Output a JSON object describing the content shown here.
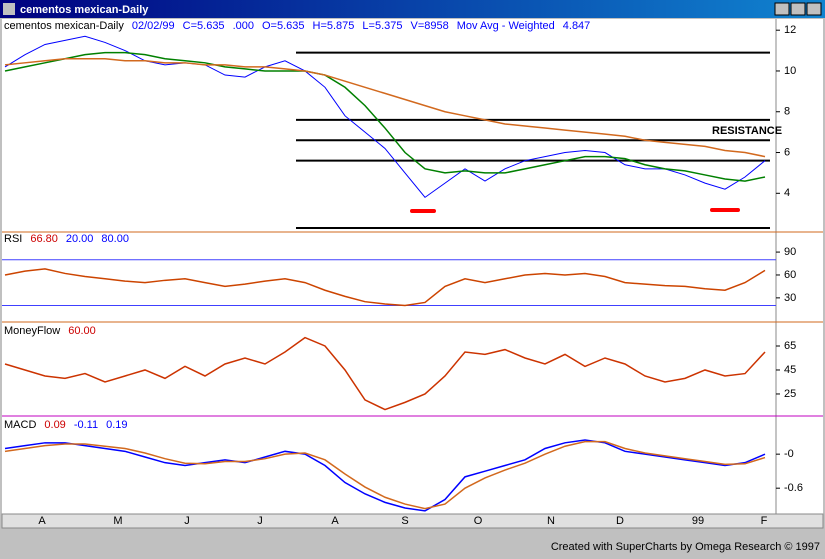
{
  "window": {
    "title": "cementos mexican-Daily"
  },
  "price_panel": {
    "header": [
      "cementos mexican-Daily",
      "02/02/99",
      "C=5.635",
      ".000",
      "O=5.635",
      "H=5.875",
      "L=5.375",
      "V=8958",
      "Mov Avg - Weighted",
      "4.847"
    ],
    "ylim": [
      2.2,
      12.5
    ],
    "yticks": [
      4,
      6,
      8,
      10,
      12
    ],
    "levels": [
      10.9,
      7.6,
      6.6,
      5.6,
      2.3
    ],
    "annotation": "RESISTANCE",
    "series": [
      {
        "name": "price",
        "color": "#0000ff",
        "values": [
          10.2,
          10.8,
          11.3,
          11.5,
          11.7,
          11.4,
          11.0,
          10.5,
          10.3,
          10.4,
          10.3,
          9.8,
          9.7,
          10.2,
          10.5,
          10.0,
          9.2,
          7.8,
          7.0,
          6.2,
          5.0,
          3.8,
          4.5,
          5.2,
          4.6,
          5.2,
          5.6,
          5.8,
          6.0,
          6.1,
          6.0,
          5.4,
          5.2,
          5.2,
          4.9,
          4.5,
          4.2,
          4.8,
          5.6
        ]
      },
      {
        "name": "wma",
        "color": "#008000",
        "values": [
          10.0,
          10.2,
          10.4,
          10.6,
          10.8,
          10.9,
          10.9,
          10.8,
          10.6,
          10.5,
          10.4,
          10.2,
          10.1,
          10.0,
          10.0,
          10.0,
          9.8,
          9.2,
          8.3,
          7.2,
          6.0,
          5.2,
          5.0,
          5.1,
          5.0,
          5.0,
          5.2,
          5.4,
          5.6,
          5.8,
          5.8,
          5.7,
          5.4,
          5.2,
          5.1,
          4.9,
          4.7,
          4.6,
          4.8
        ]
      },
      {
        "name": "ma",
        "color": "#d2691e",
        "values": [
          10.3,
          10.4,
          10.5,
          10.6,
          10.6,
          10.6,
          10.5,
          10.5,
          10.4,
          10.4,
          10.3,
          10.3,
          10.2,
          10.2,
          10.1,
          10.0,
          9.8,
          9.5,
          9.2,
          8.9,
          8.6,
          8.3,
          8.0,
          7.8,
          7.6,
          7.4,
          7.3,
          7.2,
          7.1,
          7.0,
          6.9,
          6.8,
          6.6,
          6.5,
          6.4,
          6.3,
          6.1,
          6.0,
          5.8
        ]
      }
    ]
  },
  "rsi_panel": {
    "header": [
      "RSI",
      "66.80",
      "20.00",
      "80.00"
    ],
    "ylim": [
      1,
      115
    ],
    "yticks": [
      30,
      60,
      90
    ],
    "bands": [
      20,
      80
    ],
    "series": [
      {
        "name": "rsi",
        "color": "#cc4400",
        "values": [
          60,
          65,
          68,
          62,
          58,
          55,
          52,
          50,
          53,
          55,
          50,
          45,
          48,
          52,
          55,
          50,
          40,
          32,
          25,
          22,
          20,
          24,
          45,
          55,
          50,
          55,
          60,
          62,
          60,
          62,
          58,
          50,
          48,
          46,
          45,
          42,
          40,
          50,
          66
        ]
      }
    ]
  },
  "mf_panel": {
    "header": [
      "MoneyFlow",
      "60.00"
    ],
    "ylim": [
      8.3,
      82.5
    ],
    "yticks": [
      25,
      45,
      65
    ],
    "series": [
      {
        "name": "moneyflow",
        "color": "#cc3300",
        "values": [
          50,
          45,
          40,
          38,
          42,
          35,
          40,
          45,
          38,
          48,
          40,
          50,
          55,
          50,
          60,
          72,
          65,
          45,
          20,
          12,
          18,
          25,
          40,
          60,
          58,
          62,
          55,
          50,
          58,
          48,
          55,
          50,
          40,
          35,
          38,
          45,
          40,
          42,
          60
        ]
      }
    ]
  },
  "macd_panel": {
    "header": [
      "MACD",
      "0.09",
      "-0.11",
      "0.19"
    ],
    "ylim": [
      -1.02,
      0.62
    ],
    "yticks": [
      {
        "value": 0,
        "label": "-0"
      },
      -0.6
    ],
    "series": [
      {
        "name": "macd",
        "color": "#0000ff",
        "values": [
          0.1,
          0.15,
          0.2,
          0.2,
          0.15,
          0.1,
          0.05,
          -0.05,
          -0.15,
          -0.2,
          -0.15,
          -0.1,
          -0.15,
          -0.05,
          0.05,
          0.0,
          -0.2,
          -0.5,
          -0.7,
          -0.85,
          -0.95,
          -1.0,
          -0.8,
          -0.4,
          -0.3,
          -0.2,
          -0.1,
          0.1,
          0.2,
          0.25,
          0.2,
          0.05,
          0.0,
          -0.05,
          -0.1,
          -0.15,
          -0.2,
          -0.15,
          0.0
        ]
      },
      {
        "name": "signal",
        "color": "#d2691e",
        "values": [
          0.05,
          0.1,
          0.15,
          0.18,
          0.18,
          0.14,
          0.1,
          0.02,
          -0.08,
          -0.16,
          -0.17,
          -0.13,
          -0.13,
          -0.08,
          0.0,
          0.02,
          -0.1,
          -0.35,
          -0.58,
          -0.76,
          -0.88,
          -0.96,
          -0.88,
          -0.6,
          -0.42,
          -0.28,
          -0.16,
          0.0,
          0.14,
          0.22,
          0.22,
          0.1,
          0.02,
          -0.03,
          -0.08,
          -0.13,
          -0.18,
          -0.17,
          -0.06
        ]
      }
    ]
  },
  "x_axis": {
    "labels": [
      "A",
      "M",
      "J",
      "J",
      "A",
      "S",
      "O",
      "N",
      "D",
      "99",
      "F"
    ]
  },
  "footer": "Created with SuperCharts by Omega Research © 1997"
}
